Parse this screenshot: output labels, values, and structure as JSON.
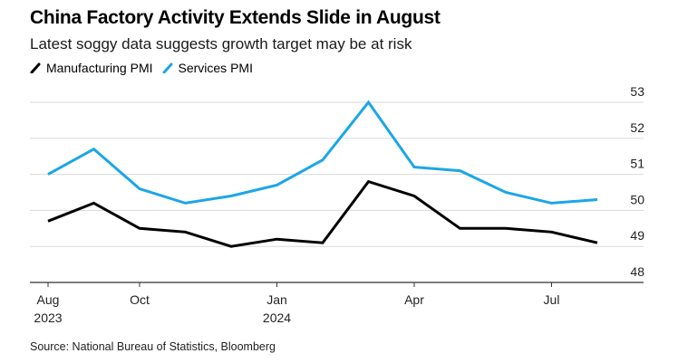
{
  "chart_data": {
    "type": "line",
    "title": "China Factory Activity Extends Slide in August",
    "subtitle": "Latest soggy data suggests growth target may be at risk",
    "source": "Source: National Bureau of Statistics, Bloomberg",
    "x": [
      "2023-08",
      "2023-09",
      "2023-10",
      "2023-11",
      "2023-12",
      "2024-01",
      "2024-02",
      "2024-03",
      "2024-04",
      "2024-05",
      "2024-06",
      "2024-07",
      "2024-08"
    ],
    "x_tick_labels": [
      {
        "index": 0,
        "line1": "Aug",
        "line2": "2023"
      },
      {
        "index": 2,
        "line1": "Oct",
        "line2": ""
      },
      {
        "index": 5,
        "line1": "Jan",
        "line2": "2024"
      },
      {
        "index": 8,
        "line1": "Apr",
        "line2": ""
      },
      {
        "index": 11,
        "line1": "Jul",
        "line2": ""
      }
    ],
    "series": [
      {
        "name": "Manufacturing PMI",
        "color": "#000000",
        "values": [
          49.7,
          50.2,
          49.5,
          49.4,
          49.0,
          49.2,
          49.1,
          50.8,
          50.4,
          49.5,
          49.5,
          49.4,
          49.1
        ]
      },
      {
        "name": "Services PMI",
        "color": "#1ba6e8",
        "values": [
          51.0,
          51.7,
          50.6,
          50.2,
          50.4,
          50.7,
          51.4,
          53.0,
          51.2,
          51.1,
          50.5,
          50.2,
          50.3
        ]
      }
    ],
    "ylim": [
      48,
      53
    ],
    "yticks": [
      48,
      49,
      50,
      51,
      52,
      53
    ],
    "xlabel": "",
    "ylabel": "",
    "grid": true,
    "legend_position": "top-left",
    "y_axis_side": "right"
  }
}
